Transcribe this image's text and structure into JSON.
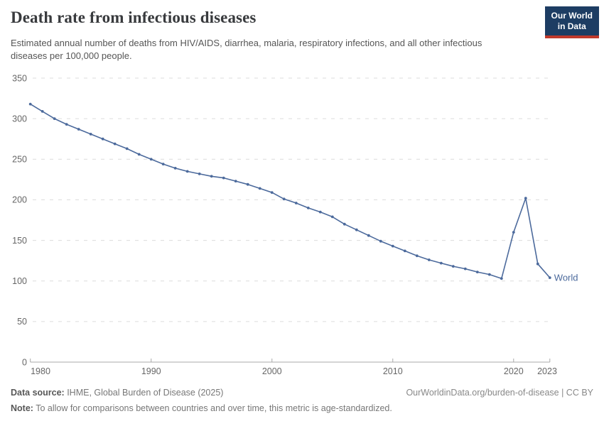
{
  "header": {
    "title": "Death rate from infectious diseases",
    "subtitle": "Estimated annual number of deaths from HIV/AIDS, diarrhea, malaria, respiratory infections, and all other infectious diseases per 100,000 people.",
    "logo": {
      "line1": "Our World",
      "line2": "in Data"
    }
  },
  "chart_data": {
    "type": "line",
    "title": "Death rate from infectious diseases",
    "ylabel": "",
    "xlabel": "",
    "ylim": [
      0,
      350
    ],
    "yticks": [
      0,
      50,
      100,
      150,
      200,
      250,
      300,
      350
    ],
    "xticks": [
      1980,
      1990,
      2000,
      2010,
      2020,
      2023
    ],
    "grid": true,
    "marker": "point",
    "legend_position": "end-of-line",
    "x": [
      1980,
      1981,
      1982,
      1983,
      1984,
      1985,
      1986,
      1987,
      1988,
      1989,
      1990,
      1991,
      1992,
      1993,
      1994,
      1995,
      1996,
      1997,
      1998,
      1999,
      2000,
      2001,
      2002,
      2003,
      2004,
      2005,
      2006,
      2007,
      2008,
      2009,
      2010,
      2011,
      2012,
      2013,
      2014,
      2015,
      2016,
      2017,
      2018,
      2019,
      2020,
      2021,
      2022,
      2023
    ],
    "series": [
      {
        "name": "World",
        "values": [
          318,
          309,
          300,
          293,
          287,
          281,
          275,
          269,
          263,
          256,
          250,
          244,
          239,
          235,
          232,
          229,
          227,
          223,
          219,
          214,
          209,
          201,
          196,
          190,
          185,
          179,
          170,
          163,
          156,
          149,
          143,
          137,
          131,
          126,
          122,
          118,
          115,
          111,
          108,
          103,
          160,
          202,
          121,
          104
        ]
      }
    ]
  },
  "footer": {
    "datasource_label": "Data source:",
    "datasource_text": " IHME, Global Burden of Disease (2025)",
    "link_text": "OurWorldinData.org/burden-of-disease | CC BY",
    "note_label": "Note:",
    "note_text": " To allow for comparisons between countries and over time, this metric is age-standardized."
  },
  "colors": {
    "line": "#4C6A9C",
    "entity_label": "#4C6A9C",
    "grid": "#dcdcdc",
    "axis": "#a9a9a9",
    "tick_label": "#666666",
    "title": "#383a3d",
    "subtitle": "#555555",
    "logo_bg": "#1d3d63",
    "logo_accent": "#c0392b",
    "footer_text": "#777777"
  }
}
